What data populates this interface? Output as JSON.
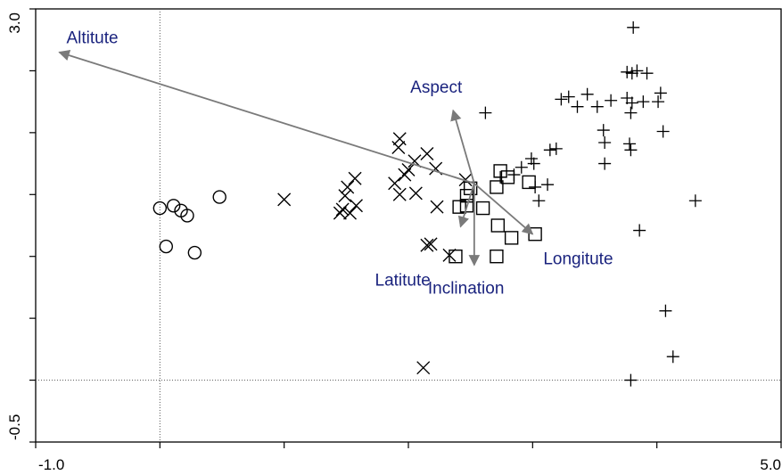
{
  "chart_data": {
    "type": "scatter",
    "title": "",
    "xlabel": "",
    "ylabel": "",
    "xlim": [
      -1.0,
      5.0
    ],
    "ylim": [
      -0.5,
      3.0
    ],
    "x_tick_labels": [
      "-1.0",
      "5.0"
    ],
    "y_tick_labels": [
      "3.0",
      "-0.5"
    ],
    "x_minor_ticks": [
      0,
      1,
      2,
      3,
      4
    ],
    "y_minor_ticks": [
      0,
      0.5,
      1,
      1.5,
      2,
      2.5
    ],
    "reference_lines": {
      "x": 0,
      "y": 0
    },
    "grid": false,
    "colors": {
      "points": "#000000",
      "arrows": "#7a7a7a",
      "arrow_labels": "#1a237e",
      "reference": "#555555"
    },
    "series": [
      {
        "marker": "circle",
        "points": [
          [
            0.0,
            1.39
          ],
          [
            0.11,
            1.41
          ],
          [
            0.17,
            1.37
          ],
          [
            0.22,
            1.33
          ],
          [
            0.05,
            1.08
          ],
          [
            0.28,
            1.03
          ],
          [
            0.48,
            1.48
          ]
        ]
      },
      {
        "marker": "x",
        "points": [
          [
            1.0,
            1.46
          ],
          [
            1.45,
            1.35
          ],
          [
            1.49,
            1.49
          ],
          [
            1.47,
            1.38
          ],
          [
            1.53,
            1.35
          ],
          [
            1.57,
            1.63
          ],
          [
            1.58,
            1.41
          ],
          [
            1.51,
            1.56
          ],
          [
            1.89,
            1.59
          ],
          [
            1.93,
            1.5
          ],
          [
            1.92,
            1.88
          ],
          [
            1.93,
            1.95
          ],
          [
            1.97,
            1.66
          ],
          [
            2.0,
            1.7
          ],
          [
            2.05,
            1.77
          ],
          [
            2.06,
            1.51
          ],
          [
            2.15,
            1.83
          ],
          [
            2.15,
            1.09
          ],
          [
            2.18,
            1.1
          ],
          [
            2.22,
            1.71
          ],
          [
            2.23,
            1.4
          ],
          [
            2.33,
            1.01
          ],
          [
            2.12,
            0.1
          ],
          [
            2.46,
            1.62
          ]
        ]
      },
      {
        "marker": "square",
        "points": [
          [
            2.38,
            1.0
          ],
          [
            2.41,
            1.4
          ],
          [
            2.47,
            1.41
          ],
          [
            2.47,
            1.49
          ],
          [
            2.5,
            1.55
          ],
          [
            2.6,
            1.39
          ],
          [
            2.71,
            1.56
          ],
          [
            2.71,
            1.0
          ],
          [
            2.72,
            1.25
          ],
          [
            2.74,
            1.69
          ],
          [
            2.8,
            1.64
          ],
          [
            2.83,
            1.15
          ],
          [
            2.97,
            1.6
          ],
          [
            3.02,
            1.18
          ]
        ]
      },
      {
        "marker": "plus",
        "points": [
          [
            2.62,
            2.16
          ],
          [
            2.74,
            1.64
          ],
          [
            2.85,
            1.66
          ],
          [
            2.91,
            1.72
          ],
          [
            2.99,
            1.79
          ],
          [
            3.01,
            1.75
          ],
          [
            3.02,
            1.56
          ],
          [
            3.05,
            1.45
          ],
          [
            3.12,
            1.58
          ],
          [
            3.14,
            1.86
          ],
          [
            3.19,
            1.87
          ],
          [
            3.23,
            2.27
          ],
          [
            3.29,
            2.29
          ],
          [
            3.36,
            2.21
          ],
          [
            3.44,
            2.31
          ],
          [
            3.52,
            2.21
          ],
          [
            3.57,
            2.02
          ],
          [
            3.58,
            1.92
          ],
          [
            3.58,
            1.75
          ],
          [
            3.63,
            2.26
          ],
          [
            3.76,
            2.28
          ],
          [
            3.76,
            2.49
          ],
          [
            3.79,
            2.16
          ],
          [
            3.8,
            2.24
          ],
          [
            3.78,
            1.91
          ],
          [
            3.79,
            1.86
          ],
          [
            3.8,
            2.48
          ],
          [
            3.84,
            2.5
          ],
          [
            3.89,
            2.25
          ],
          [
            3.92,
            2.48
          ],
          [
            4.01,
            2.25
          ],
          [
            4.03,
            2.32
          ],
          [
            4.05,
            2.01
          ],
          [
            4.31,
            1.45
          ],
          [
            3.81,
            2.85
          ],
          [
            4.07,
            0.56
          ],
          [
            4.13,
            0.19
          ],
          [
            3.86,
            1.21
          ],
          [
            3.79,
            0.0
          ]
        ]
      }
    ],
    "vectors": [
      {
        "label": "Altitute",
        "from": [
          2.53,
          1.59
        ],
        "to": [
          -0.81,
          2.65
        ]
      },
      {
        "label": "Aspect",
        "from": [
          2.53,
          1.59
        ],
        "to": [
          2.36,
          2.18
        ]
      },
      {
        "label": "Longitute",
        "from": [
          2.53,
          1.59
        ],
        "to": [
          3.0,
          1.18
        ]
      },
      {
        "label": "Latitute",
        "from": [
          2.53,
          1.59
        ],
        "to": [
          2.42,
          1.24
        ]
      },
      {
        "label": "Inclination",
        "from": [
          2.53,
          1.59
        ],
        "to": [
          2.53,
          0.93
        ]
      }
    ]
  }
}
